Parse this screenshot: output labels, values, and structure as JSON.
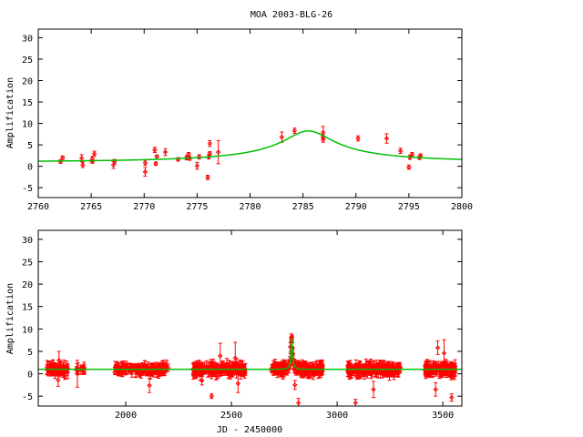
{
  "chart_data": [
    {
      "type": "scatter",
      "title": "MOA 2003-BLG-26",
      "xlabel": "",
      "ylabel": "Amplification",
      "xlim": [
        2760,
        2800
      ],
      "ylim": [
        -7.3,
        32
      ],
      "xticks": [
        2760,
        2765,
        2770,
        2775,
        2780,
        2785,
        2790,
        2795,
        2800
      ],
      "yticks": [
        -5,
        0,
        5,
        10,
        15,
        20,
        25,
        30
      ],
      "grid": false,
      "series": [
        {
          "name": "data",
          "color": "#ff0000",
          "style": "points-with-errorbars",
          "points": [
            [
              2762.1,
              1.1,
              0.4
            ],
            [
              2762.3,
              2.0,
              0.4
            ],
            [
              2764.1,
              1.9,
              0.8
            ],
            [
              2764.2,
              0.3,
              0.6
            ],
            [
              2765.1,
              1.7,
              0.6
            ],
            [
              2765.1,
              1.1,
              0.4
            ],
            [
              2765.3,
              2.9,
              0.6
            ],
            [
              2767.1,
              0.3,
              0.8
            ],
            [
              2767.2,
              1.1,
              0.5
            ],
            [
              2770.1,
              -1.3,
              1.0
            ],
            [
              2770.1,
              0.8,
              0.6
            ],
            [
              2771.0,
              3.8,
              0.6
            ],
            [
              2771.1,
              0.6,
              0.4
            ],
            [
              2771.2,
              2.3,
              0.3
            ],
            [
              2772.0,
              3.3,
              0.8
            ],
            [
              2773.2,
              1.6,
              0.4
            ],
            [
              2774.0,
              2.0,
              0.5
            ],
            [
              2774.2,
              2.8,
              0.4
            ],
            [
              2774.3,
              1.8,
              0.4
            ],
            [
              2775.0,
              0.1,
              0.8
            ],
            [
              2775.2,
              2.2,
              0.5
            ],
            [
              2776.0,
              -2.6,
              0.5
            ],
            [
              2776.1,
              2.2,
              0.5
            ],
            [
              2776.2,
              3.0,
              0.4
            ],
            [
              2776.2,
              5.3,
              0.7
            ],
            [
              2777.0,
              3.3,
              2.7
            ],
            [
              2783.0,
              6.8,
              1.2
            ],
            [
              2784.2,
              8.3,
              0.6
            ],
            [
              2786.9,
              7.9,
              1.4
            ],
            [
              2786.9,
              6.9,
              0.5
            ],
            [
              2786.9,
              6.2,
              0.6
            ],
            [
              2790.2,
              6.5,
              0.6
            ],
            [
              2792.9,
              6.5,
              1.1
            ],
            [
              2794.2,
              3.6,
              0.6
            ],
            [
              2795.0,
              -0.2,
              0.5
            ],
            [
              2795.1,
              2.1,
              0.5
            ],
            [
              2795.3,
              2.8,
              0.4
            ],
            [
              2796.0,
              2.0,
              0.4
            ],
            [
              2796.1,
              2.5,
              0.4
            ]
          ]
        },
        {
          "name": "model",
          "color": "#00c000",
          "style": "line",
          "model": {
            "kind": "paczynski",
            "t0": 2785.5,
            "u0": 0.122,
            "tE": 19.6,
            "baseline": 1.0
          }
        }
      ]
    },
    {
      "type": "scatter",
      "title": "",
      "xlabel": "JD - 2450000",
      "ylabel": "Amplification",
      "xlim": [
        1586,
        3590
      ],
      "ylim": [
        -7.2,
        32
      ],
      "xticks": [
        2000,
        2500,
        3000,
        3500
      ],
      "yticks": [
        -5,
        0,
        5,
        10,
        15,
        20,
        25,
        30
      ],
      "grid": false,
      "series": [
        {
          "name": "data",
          "color": "#ff0000",
          "style": "points-with-errorbars",
          "seasons": [
            {
              "start": 1626,
              "end": 1727,
              "n": 70,
              "mean": 1.0,
              "spread": 1.2
            },
            {
              "start": 1760,
              "end": 1806,
              "n": 12,
              "mean": 1.1,
              "spread": 1.0
            },
            {
              "start": 1947,
              "end": 2201,
              "n": 150,
              "mean": 1.0,
              "spread": 1.1
            },
            {
              "start": 2318,
              "end": 2568,
              "n": 170,
              "mean": 1.1,
              "spread": 1.4
            },
            {
              "start": 2690,
              "end": 2935,
              "n": 200,
              "mean": 1.0,
              "spread": 1.3
            },
            {
              "start": 3050,
              "end": 3299,
              "n": 190,
              "mean": 1.0,
              "spread": 1.4
            },
            {
              "start": 3414,
              "end": 3560,
              "n": 130,
              "mean": 1.0,
              "spread": 1.3
            }
          ],
          "points": [
            [
              2406,
              -5.0,
              0.5
            ],
            [
              2817,
              -6.5,
              1.0
            ],
            [
              3087,
              -6.5,
              0.8
            ],
            [
              3542,
              -5.3,
              0.8
            ],
            [
              3476,
              5.8,
              1.5
            ],
            [
              3506,
              4.6,
              3.0
            ],
            [
              2447,
              4.0,
              2.8
            ],
            [
              2518,
              3.5,
              3.5
            ],
            [
              2783,
              8.0,
              0.9
            ],
            [
              2785,
              7.2,
              1.2
            ],
            [
              2779,
              6.0,
              1.0
            ],
            [
              3172,
              -3.5,
              1.8
            ],
            [
              3466,
              -3.5,
              1.5
            ],
            [
              2112,
              -2.6,
              1.6
            ],
            [
              1680,
              -1.4,
              1.4
            ],
            [
              1771,
              0.0,
              3.0
            ],
            [
              2800,
              -2.5,
              1.0
            ],
            [
              2531,
              -2.2,
              2.0
            ],
            [
              1684,
              3.0,
              2.0
            ],
            [
              2360,
              -1.5,
              1.0
            ]
          ]
        },
        {
          "name": "model",
          "color": "#00c000",
          "style": "line",
          "model": {
            "kind": "paczynski",
            "t0": 2785.5,
            "u0": 0.122,
            "tE": 19.6,
            "baseline": 1.0
          }
        }
      ]
    }
  ]
}
